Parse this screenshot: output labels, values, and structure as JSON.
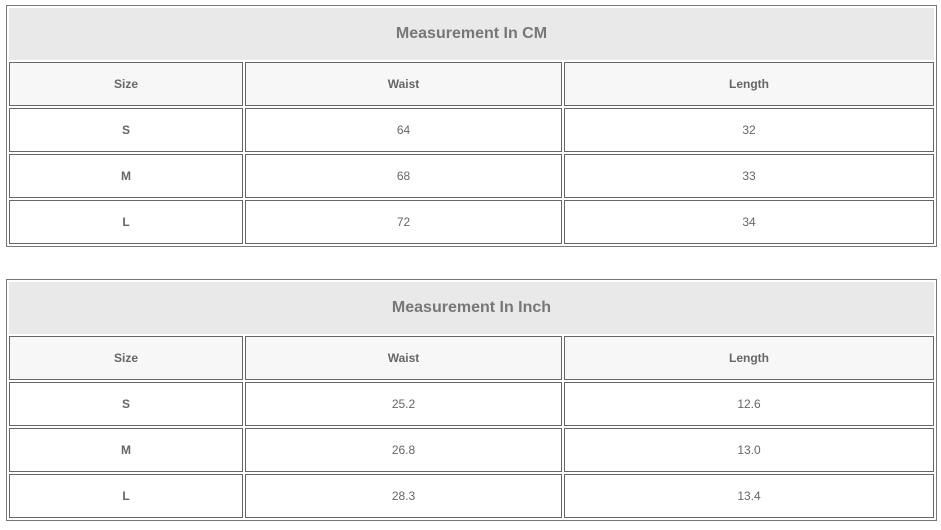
{
  "tables": [
    {
      "title": "Measurement In CM",
      "headers": [
        "Size",
        "Waist",
        "Length"
      ],
      "rows": [
        [
          "S",
          "64",
          "32"
        ],
        [
          "M",
          "68",
          "33"
        ],
        [
          "L",
          "72",
          "34"
        ]
      ]
    },
    {
      "title": "Measurement In Inch",
      "headers": [
        "Size",
        "Waist",
        "Length"
      ],
      "rows": [
        [
          "S",
          "25.2",
          "12.6"
        ],
        [
          "M",
          "26.8",
          "13.0"
        ],
        [
          "L",
          "28.3",
          "13.4"
        ]
      ]
    }
  ]
}
